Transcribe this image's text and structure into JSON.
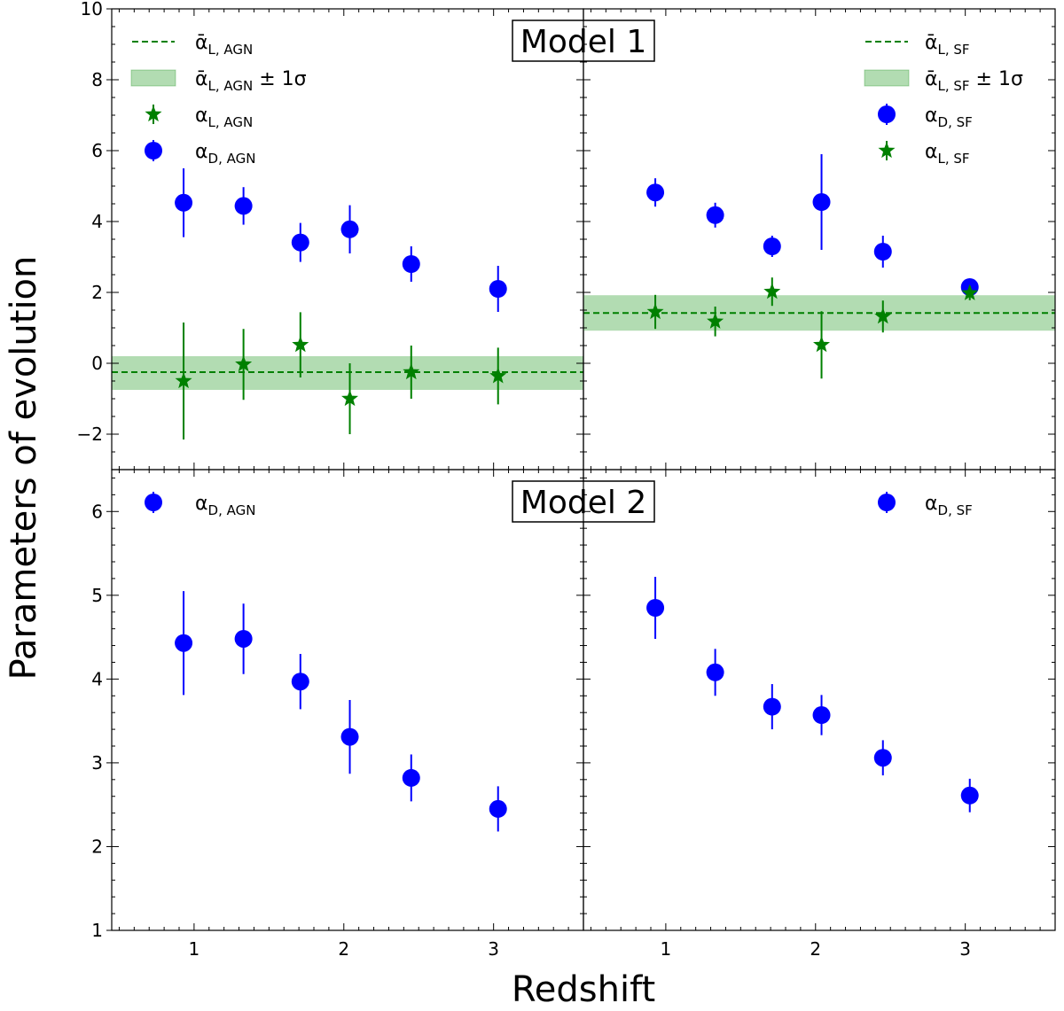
{
  "figure": {
    "xlabel": "Redshift",
    "ylabel": "Parameters of evolution",
    "colors": {
      "alpha_D": "#0000ff",
      "alpha_L": "#008000",
      "band": "#9fd39f"
    }
  },
  "chart_data": [
    {
      "type": "scatter",
      "title": "Model 1",
      "panel": "top-left",
      "xlim": [
        0.45,
        3.6
      ],
      "ylim": [
        -3,
        10
      ],
      "yticks": [
        -2,
        0,
        2,
        4,
        6,
        8,
        10
      ],
      "ytick_labels": [
        "−2",
        "0",
        "2",
        "4",
        "6",
        "8",
        "10"
      ],
      "legend_position": "top-left",
      "mean_line": {
        "name": "ᾱ",
        "sub": "L, AGN",
        "value": -0.25
      },
      "band": {
        "name": "ᾱ",
        "sub": "L, AGN",
        "suffix": " ± 1σ",
        "low": -0.75,
        "high": 0.2
      },
      "series": [
        {
          "name": "α",
          "sub": "L, AGN",
          "marker": "star",
          "x": [
            0.93,
            1.33,
            1.71,
            2.04,
            2.45,
            3.03
          ],
          "y": [
            -0.5,
            -0.03,
            0.52,
            -1.0,
            -0.25,
            -0.36
          ],
          "err": [
            1.65,
            1.0,
            0.92,
            1.0,
            0.75,
            0.8
          ]
        },
        {
          "name": "α",
          "sub": "D, AGN",
          "marker": "circle",
          "x": [
            0.93,
            1.33,
            1.71,
            2.04,
            2.45,
            3.03
          ],
          "y": [
            4.53,
            4.44,
            3.41,
            3.78,
            2.8,
            2.1
          ],
          "err": [
            0.97,
            0.53,
            0.55,
            0.68,
            0.5,
            0.65
          ]
        }
      ]
    },
    {
      "type": "scatter",
      "panel": "top-right",
      "xlim": [
        0.45,
        3.6
      ],
      "ylim": [
        -3,
        10
      ],
      "legend_position": "top-right",
      "mean_line": {
        "name": "ᾱ",
        "sub": "L, SF",
        "value": 1.42
      },
      "band": {
        "name": "ᾱ",
        "sub": "L, SF",
        "suffix": " ± 1σ",
        "low": 0.92,
        "high": 1.92
      },
      "series": [
        {
          "name": "α",
          "sub": "D, SF",
          "marker": "circle",
          "x": [
            0.93,
            1.33,
            1.71,
            2.04,
            2.45,
            3.03
          ],
          "y": [
            4.82,
            4.18,
            3.3,
            4.55,
            3.15,
            2.15
          ],
          "err": [
            0.4,
            0.35,
            0.3,
            1.35,
            0.45,
            0.2
          ]
        },
        {
          "name": "α",
          "sub": "L, SF",
          "marker": "star",
          "x": [
            0.93,
            1.33,
            1.71,
            2.04,
            2.45,
            3.03
          ],
          "y": [
            1.45,
            1.18,
            2.02,
            0.52,
            1.32,
            1.98
          ],
          "err": [
            0.48,
            0.42,
            0.4,
            0.95,
            0.45,
            0.2
          ]
        }
      ]
    },
    {
      "type": "scatter",
      "title": "Model 2",
      "panel": "bottom-left",
      "xlim": [
        0.45,
        3.6
      ],
      "ylim": [
        1,
        6.5
      ],
      "xticks": [
        1,
        2,
        3
      ],
      "xtick_labels": [
        "1",
        "2",
        "3"
      ],
      "yticks": [
        1,
        2,
        3,
        4,
        5,
        6
      ],
      "ytick_labels": [
        "1",
        "2",
        "3",
        "4",
        "5",
        "6"
      ],
      "legend_position": "top-left",
      "series": [
        {
          "name": "α",
          "sub": "D, AGN",
          "marker": "circle",
          "x": [
            0.93,
            1.33,
            1.71,
            2.04,
            2.45,
            3.03
          ],
          "y": [
            4.43,
            4.48,
            3.97,
            3.31,
            2.82,
            2.45
          ],
          "err": [
            0.62,
            0.42,
            0.33,
            0.44,
            0.28,
            0.27
          ]
        }
      ]
    },
    {
      "type": "scatter",
      "panel": "bottom-right",
      "xlim": [
        0.45,
        3.6
      ],
      "ylim": [
        1,
        6.5
      ],
      "xticks": [
        1,
        2,
        3
      ],
      "xtick_labels": [
        "1",
        "2",
        "3"
      ],
      "legend_position": "top-right",
      "series": [
        {
          "name": "α",
          "sub": "D, SF",
          "marker": "circle",
          "x": [
            0.93,
            1.33,
            1.71,
            2.04,
            2.45,
            3.03
          ],
          "y": [
            4.85,
            4.08,
            3.67,
            3.57,
            3.06,
            2.61
          ],
          "err": [
            0.37,
            0.28,
            0.27,
            0.24,
            0.21,
            0.2
          ]
        }
      ]
    }
  ]
}
